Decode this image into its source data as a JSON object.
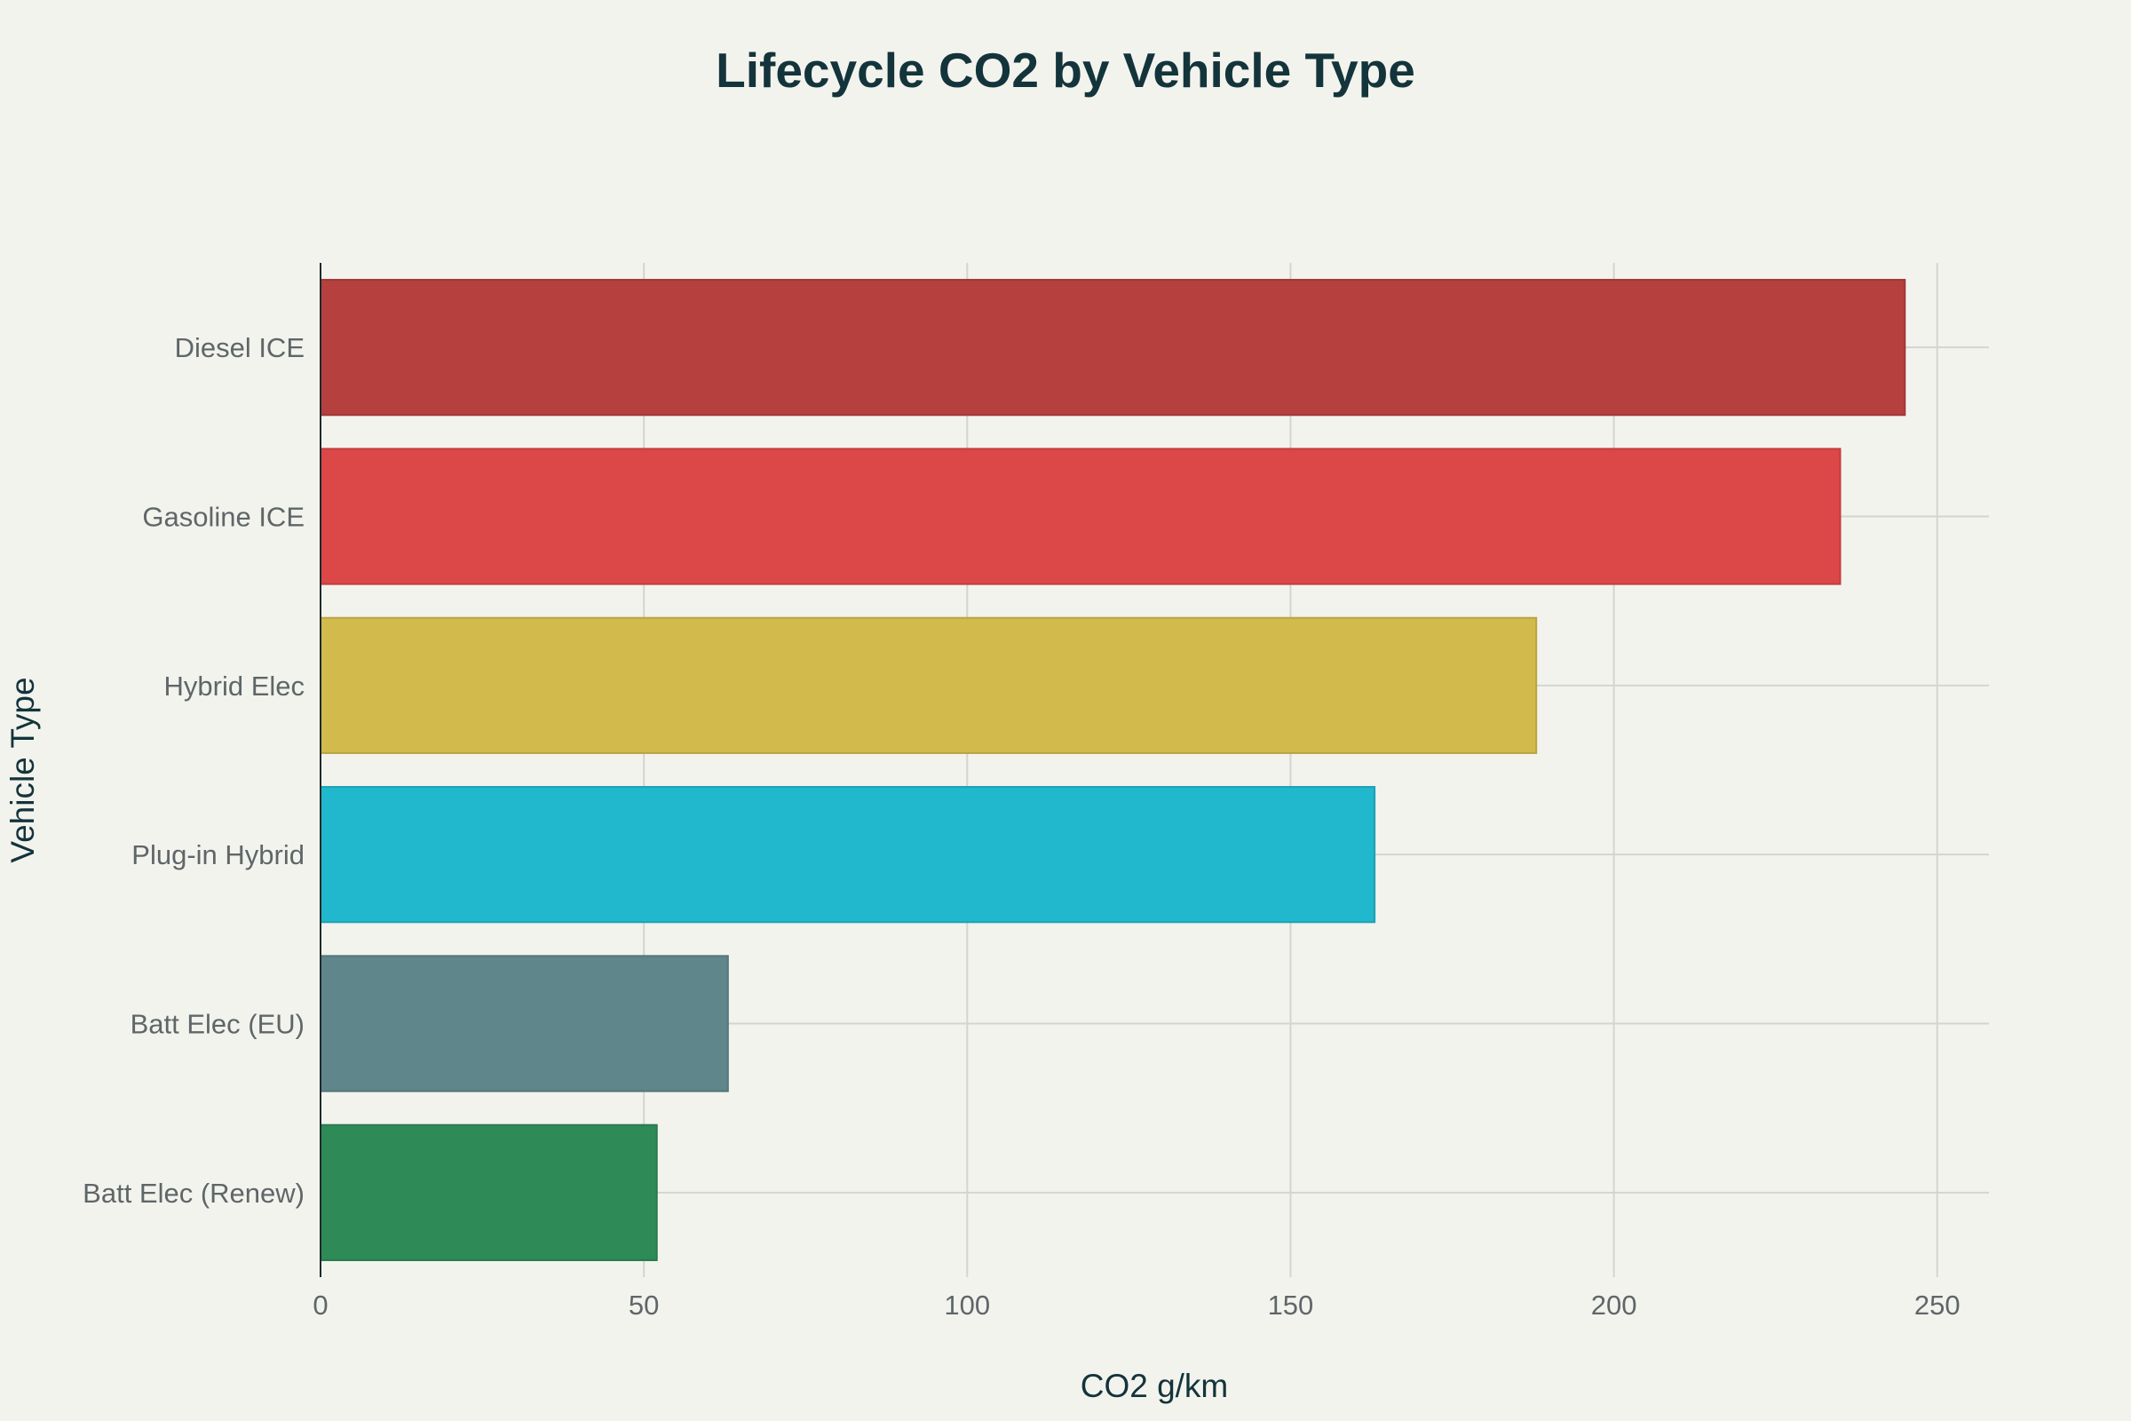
{
  "chart_data": {
    "type": "bar",
    "orientation": "horizontal",
    "title": "Lifecycle CO2 by Vehicle Type",
    "xlabel": "CO2 g/km",
    "ylabel": "Vehicle Type",
    "categories": [
      "Diesel ICE",
      "Gasoline ICE",
      "Hybrid Elec",
      "Plug-in Hybrid",
      "Batt Elec (EU)",
      "Batt Elec (Renew)"
    ],
    "values": [
      245,
      235,
      188,
      163,
      63,
      52
    ],
    "colors": [
      "#b5403e",
      "#dc4747",
      "#d2ba4c",
      "#21b7cd",
      "#5e868b",
      "#2e8a57"
    ],
    "xlim": [
      0,
      258
    ],
    "xticks": [
      "0",
      "50",
      "100",
      "150",
      "200",
      "250"
    ],
    "grid": true,
    "background_color": "#f3f3ee"
  }
}
